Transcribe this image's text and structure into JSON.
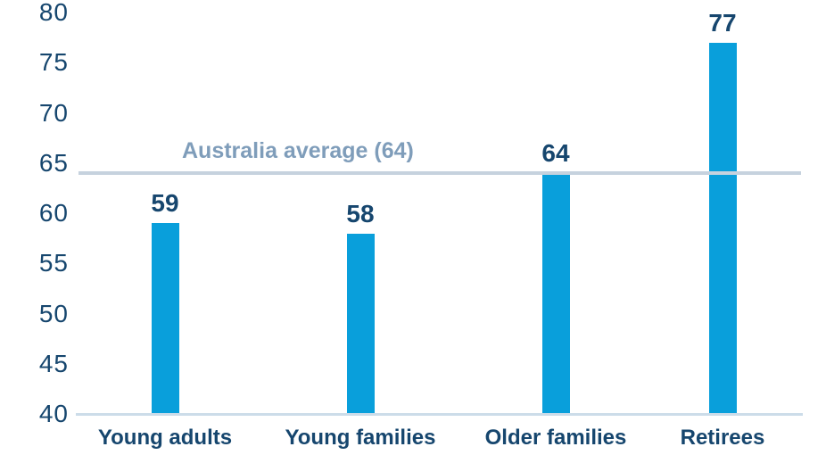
{
  "chart_data": {
    "type": "bar",
    "title": "",
    "xlabel": "",
    "ylabel": "",
    "categories": [
      "Young adults",
      "Young families",
      "Older families",
      "Retirees"
    ],
    "values": [
      59,
      58,
      64,
      77
    ],
    "ylim": [
      40,
      80
    ],
    "yticks": [
      40,
      45,
      50,
      55,
      60,
      65,
      70,
      75,
      80
    ],
    "grid": "off",
    "legend": "none",
    "annotations": [
      {
        "type": "hline",
        "value": 64,
        "label": "Australia average (64)"
      }
    ]
  },
  "colors": {
    "bar": "#099fdb",
    "text_navy": "#16466e",
    "average_line": "#c6d2de",
    "average_label": "#7f9dba",
    "axis_line": "#ccdce9",
    "background": "#ffffff"
  }
}
